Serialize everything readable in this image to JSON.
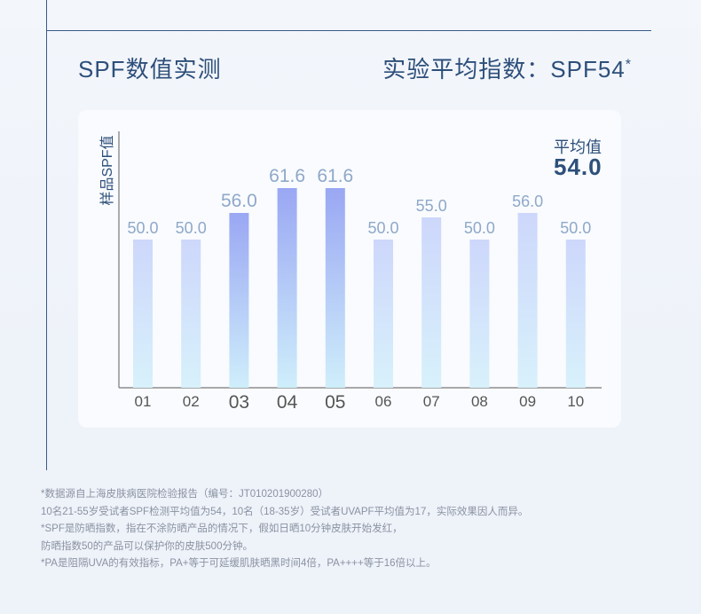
{
  "header": {
    "title_left": "SPF数值实测",
    "title_right": "实验平均指数：SPF54",
    "title_right_mark": "*"
  },
  "average": {
    "label": "平均值",
    "value": "54.0"
  },
  "colors": {
    "primary_text": "#2d4f7a",
    "value_label": "#8fa8c9",
    "bar_normal_top": "#cdd7fb",
    "bar_normal_bottom": "#d8f1fb",
    "bar_high_top": "#9aa7f3",
    "bar_high_bottom": "#cfeefb"
  },
  "chart_data": {
    "type": "bar",
    "title": "",
    "xlabel": "",
    "ylabel": "样品SPF值",
    "categories": [
      "01",
      "02",
      "03",
      "04",
      "05",
      "06",
      "07",
      "08",
      "09",
      "10"
    ],
    "values": [
      50.0,
      50.0,
      56.0,
      61.6,
      61.6,
      50.0,
      55.0,
      50.0,
      56.0,
      50.0
    ],
    "value_labels": [
      "50.0",
      "50.0",
      "56.0",
      "61.6",
      "61.6",
      "50.0",
      "55.0",
      "50.0",
      "56.0",
      "50.0"
    ],
    "highlighted": [
      false,
      false,
      true,
      true,
      true,
      false,
      false,
      false,
      false,
      false
    ],
    "ylim": [
      0,
      70
    ],
    "grid": false
  },
  "footnotes": [
    "*数据源自上海皮肤病医院检验报告（编号：JT010201900280）",
    "10名21-55岁受试者SPF检测平均值为54，10名（18-35岁）受试者UVAPF平均值为17，实际效果因人而异。",
    "*SPF是防晒指数，指在不涂防晒产品的情况下，假如日晒10分钟皮肤开始发红，",
    "防晒指数50的产品可以保护你的皮肤500分钟。",
    "*PA是阻隔UVA的有效指标，PA+等于可延缓肌肤晒黑时间4倍，PA++++等于16倍以上。"
  ]
}
